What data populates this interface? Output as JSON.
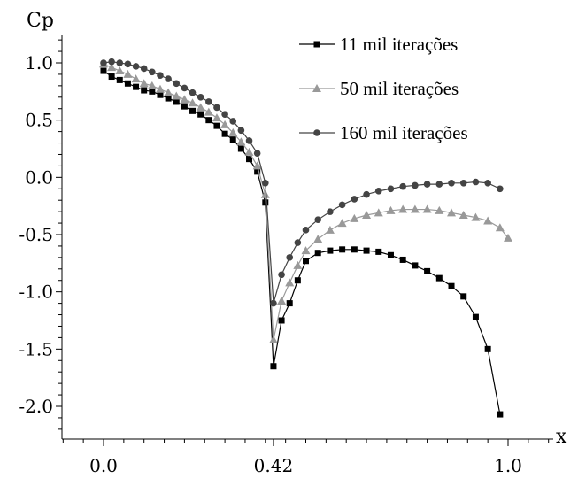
{
  "chart_data": {
    "type": "line",
    "xlabel": "x",
    "ylabel": "Cp",
    "xlim": [
      -0.1,
      1.12
    ],
    "ylim": [
      -2.3,
      1.3
    ],
    "x_ticks": [
      0.0,
      0.42,
      1.0
    ],
    "x_tick_labels": [
      "0.0",
      "0.42",
      "1.0"
    ],
    "y_ticks": [
      1.0,
      0.5,
      0.0,
      -0.5,
      -1.0,
      -1.5,
      -2.0
    ],
    "y_tick_labels": [
      "1.0",
      "0.5",
      "0.0",
      "-0.5",
      "-1.0",
      "-1.5",
      "-2.0"
    ],
    "legend_position": "top-right",
    "series": [
      {
        "name": "11 mil iterações",
        "marker": "square",
        "color": "#000000",
        "x": [
          0.0,
          0.02,
          0.04,
          0.06,
          0.08,
          0.1,
          0.12,
          0.14,
          0.16,
          0.18,
          0.2,
          0.22,
          0.24,
          0.26,
          0.28,
          0.3,
          0.32,
          0.34,
          0.36,
          0.38,
          0.4,
          0.42,
          0.44,
          0.46,
          0.48,
          0.5,
          0.53,
          0.56,
          0.59,
          0.62,
          0.65,
          0.68,
          0.71,
          0.74,
          0.77,
          0.8,
          0.83,
          0.86,
          0.89,
          0.92,
          0.95,
          0.98,
          1.0
        ],
        "y": [
          0.93,
          0.88,
          0.85,
          0.82,
          0.79,
          0.76,
          0.75,
          0.72,
          0.69,
          0.66,
          0.62,
          0.58,
          0.55,
          0.5,
          0.45,
          0.38,
          0.33,
          0.25,
          0.16,
          0.05,
          -0.22,
          -1.65,
          -1.25,
          -1.1,
          -0.9,
          -0.73,
          -0.66,
          -0.64,
          -0.63,
          -0.63,
          -0.64,
          -0.65,
          -0.68,
          -0.72,
          -0.77,
          -0.82,
          -0.88,
          -0.95,
          -1.04,
          -1.22,
          -1.5,
          -2.07,
          -2.07
        ],
        "display_count": 42
      },
      {
        "name": "50 mil iterações",
        "marker": "triangle",
        "color": "#999999",
        "x": [
          0.0,
          0.02,
          0.04,
          0.06,
          0.08,
          0.1,
          0.12,
          0.14,
          0.16,
          0.18,
          0.2,
          0.22,
          0.24,
          0.26,
          0.28,
          0.3,
          0.32,
          0.34,
          0.36,
          0.38,
          0.4,
          0.42,
          0.44,
          0.46,
          0.48,
          0.5,
          0.53,
          0.56,
          0.59,
          0.62,
          0.65,
          0.68,
          0.71,
          0.74,
          0.77,
          0.8,
          0.83,
          0.86,
          0.89,
          0.92,
          0.95,
          0.98,
          1.0
        ],
        "y": [
          0.99,
          0.96,
          0.93,
          0.9,
          0.86,
          0.82,
          0.8,
          0.77,
          0.74,
          0.71,
          0.68,
          0.65,
          0.61,
          0.57,
          0.52,
          0.46,
          0.39,
          0.31,
          0.22,
          0.1,
          -0.15,
          -1.42,
          -1.08,
          -0.92,
          -0.77,
          -0.64,
          -0.54,
          -0.46,
          -0.4,
          -0.36,
          -0.33,
          -0.31,
          -0.29,
          -0.28,
          -0.28,
          -0.28,
          -0.29,
          -0.31,
          -0.33,
          -0.35,
          -0.38,
          -0.44,
          -0.53
        ]
      },
      {
        "name": "160 mil iterações",
        "marker": "circle",
        "color": "#444444",
        "x": [
          0.0,
          0.02,
          0.04,
          0.06,
          0.08,
          0.1,
          0.12,
          0.14,
          0.16,
          0.18,
          0.2,
          0.22,
          0.24,
          0.26,
          0.28,
          0.3,
          0.32,
          0.34,
          0.36,
          0.38,
          0.4,
          0.42,
          0.44,
          0.46,
          0.48,
          0.5,
          0.53,
          0.56,
          0.59,
          0.62,
          0.65,
          0.68,
          0.71,
          0.74,
          0.77,
          0.8,
          0.83,
          0.86,
          0.89,
          0.92,
          0.95,
          0.98
        ],
        "y": [
          1.0,
          1.01,
          1.0,
          0.99,
          0.97,
          0.95,
          0.92,
          0.89,
          0.86,
          0.82,
          0.78,
          0.74,
          0.7,
          0.66,
          0.61,
          0.55,
          0.49,
          0.41,
          0.32,
          0.21,
          -0.05,
          -1.1,
          -0.85,
          -0.7,
          -0.57,
          -0.46,
          -0.37,
          -0.3,
          -0.24,
          -0.19,
          -0.15,
          -0.12,
          -0.1,
          -0.08,
          -0.07,
          -0.06,
          -0.06,
          -0.05,
          -0.05,
          -0.04,
          -0.05,
          -0.1
        ]
      }
    ]
  }
}
